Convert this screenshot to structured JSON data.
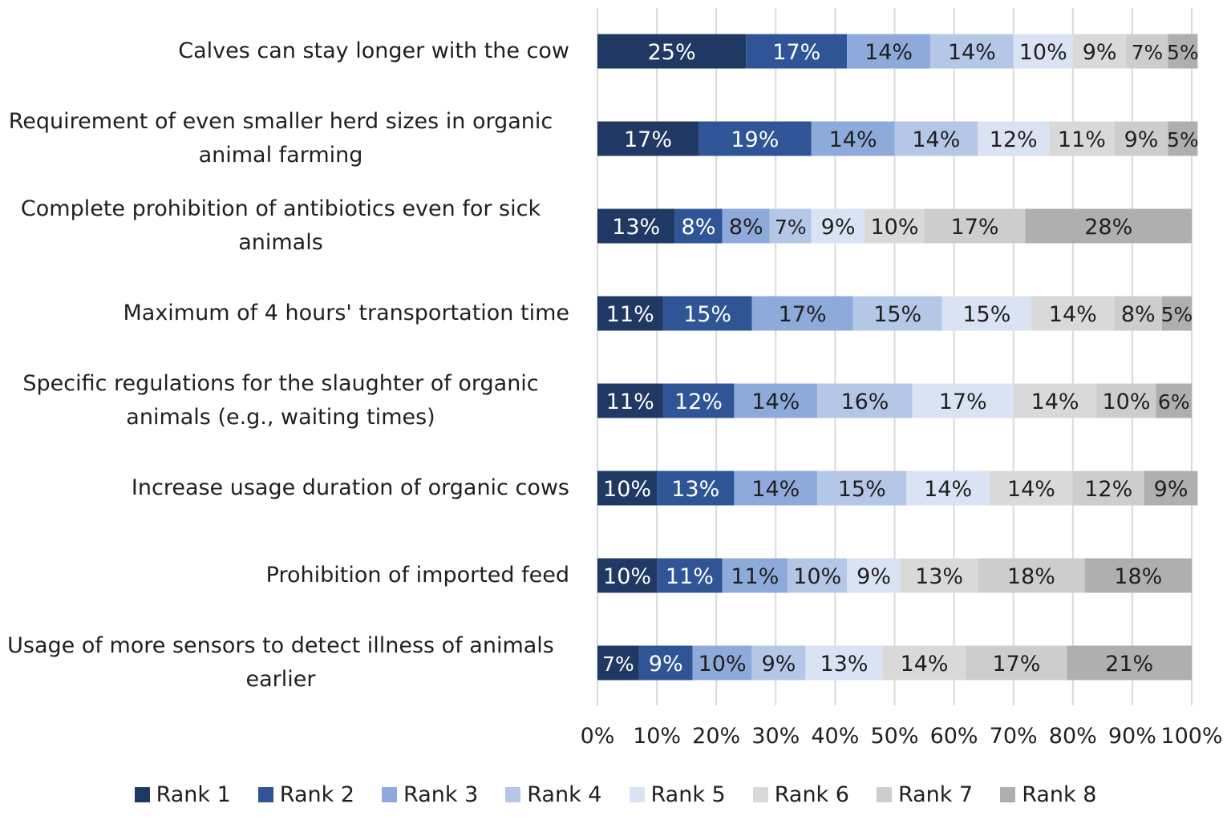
{
  "chart_data": {
    "type": "bar",
    "orientation": "horizontal",
    "stacked": "percent",
    "title": "",
    "xlabel": "",
    "ylabel": "",
    "xlim": [
      0,
      100
    ],
    "grid": "vertical",
    "legend_position": "bottom",
    "x_ticks": [
      "0%",
      "10%",
      "20%",
      "30%",
      "40%",
      "50%",
      "60%",
      "70%",
      "80%",
      "90%",
      "100%"
    ],
    "categories": [
      "Calves can stay longer with the cow",
      "Requirement of even smaller herd sizes in organic animal farming",
      "Complete prohibition of antibiotics even for sick animals",
      "Maximum of 4 hours' transportation time",
      "Specific regulations for the slaughter of organic animals (e.g., waiting times)",
      "Increase usage duration of organic cows",
      "Prohibition of imported feed",
      "Usage of more sensors to detect illness of animals earlier"
    ],
    "category_lines": [
      [
        "Calves can stay longer with the cow"
      ],
      [
        "Requirement of even smaller herd sizes in organic",
        "animal farming"
      ],
      [
        "Complete prohibition of antibiotics even for sick",
        "animals"
      ],
      [
        "Maximum of 4 hours' transportation time"
      ],
      [
        "Specific regulations for the slaughter of organic",
        "animals (e.g., waiting times)"
      ],
      [
        "Increase usage duration of organic cows"
      ],
      [
        "Prohibition of imported feed"
      ],
      [
        "Usage of more sensors to detect illness of animals",
        "earlier"
      ]
    ],
    "series": [
      {
        "name": "Rank 1",
        "color": "#1f3864",
        "text_color": "#ffffff",
        "values": [
          25,
          17,
          13,
          11,
          11,
          10,
          10,
          7
        ]
      },
      {
        "name": "Rank 2",
        "color": "#2f5597",
        "text_color": "#ffffff",
        "values": [
          17,
          19,
          8,
          15,
          12,
          13,
          11,
          9
        ]
      },
      {
        "name": "Rank 3",
        "color": "#8eaadb",
        "text_color": "#1f1f1f",
        "values": [
          14,
          14,
          8,
          17,
          14,
          14,
          11,
          10
        ]
      },
      {
        "name": "Rank 4",
        "color": "#b4c7e7",
        "text_color": "#1f1f1f",
        "values": [
          14,
          14,
          7,
          15,
          16,
          15,
          10,
          9
        ]
      },
      {
        "name": "Rank 5",
        "color": "#dae3f3",
        "text_color": "#1f1f1f",
        "values": [
          10,
          12,
          9,
          15,
          17,
          14,
          9,
          13
        ]
      },
      {
        "name": "Rank 6",
        "color": "#d9d9d9",
        "text_color": "#1f1f1f",
        "values": [
          9,
          11,
          10,
          14,
          14,
          14,
          13,
          14
        ]
      },
      {
        "name": "Rank 7",
        "color": "#cdcdcd",
        "text_color": "#1f1f1f",
        "values": [
          7,
          9,
          17,
          8,
          10,
          12,
          18,
          17
        ]
      },
      {
        "name": "Rank 8",
        "color": "#afafaf",
        "text_color": "#1f1f1f",
        "values": [
          5,
          5,
          28,
          5,
          6,
          9,
          18,
          21
        ]
      }
    ]
  }
}
